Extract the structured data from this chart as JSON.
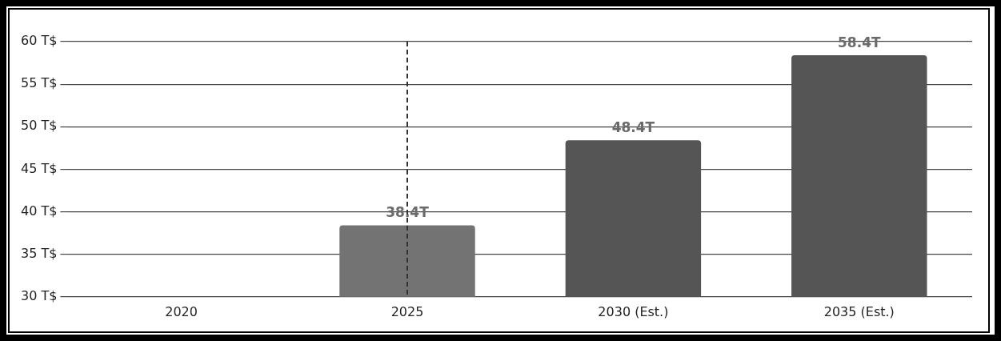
{
  "chart_data": {
    "type": "bar",
    "categories": [
      "2020",
      "2025",
      "2030 (Est.)",
      "2035 (Est.)"
    ],
    "values": [
      null,
      38.4,
      48.4,
      58.4
    ],
    "colors": [
      "#555555",
      "#737373",
      "#555555",
      "#555555"
    ],
    "value_labels": [
      null,
      "38.4T",
      "48.4T",
      "58.4T"
    ],
    "ylim": [
      30,
      60
    ],
    "yticks": [
      {
        "value": 30,
        "label": "30 T$"
      },
      {
        "value": 35,
        "label": "35 T$"
      },
      {
        "value": 40,
        "label": "40 T$"
      },
      {
        "value": 45,
        "label": "45 T$"
      },
      {
        "value": 50,
        "label": "50 T$"
      },
      {
        "value": 55,
        "label": "55 T$"
      },
      {
        "value": 60,
        "label": "60 T$"
      }
    ],
    "ref_lines": [
      {
        "axis": "x",
        "value": "2025",
        "label": null,
        "color": "#333333",
        "line_style": "dashed"
      }
    ],
    "grid": "y",
    "legend": false
  }
}
